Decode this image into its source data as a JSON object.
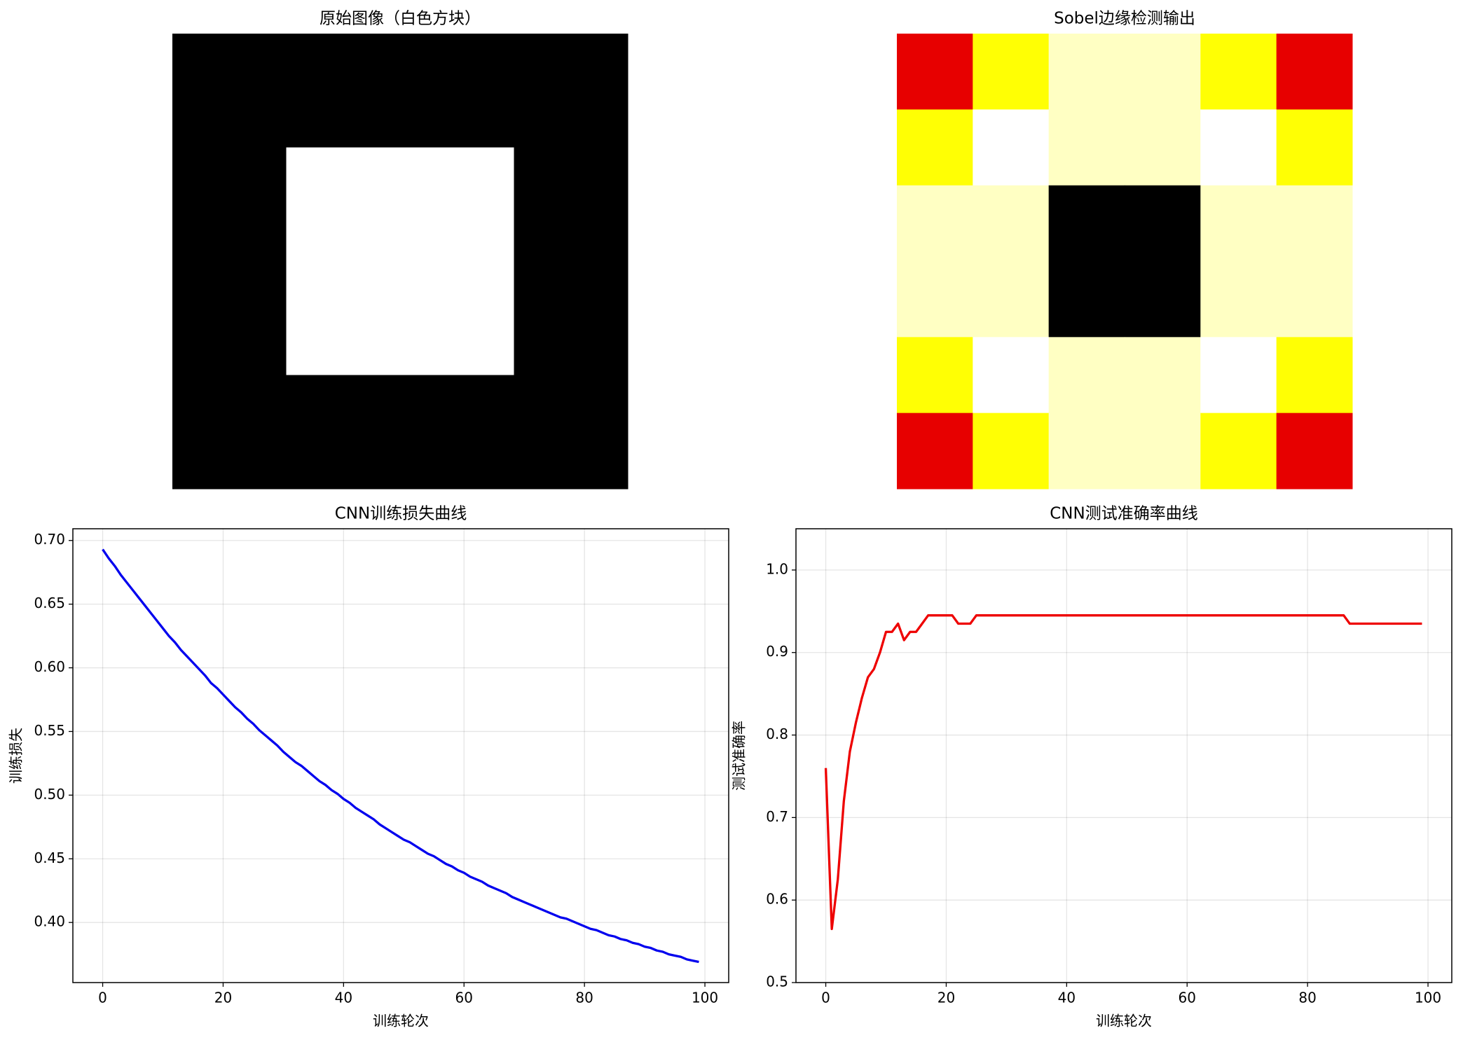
{
  "chart_data": [
    {
      "type": "heatmap",
      "title": "原始图像（白色方块）",
      "colormap": "gray",
      "zlim": [
        0,
        1
      ],
      "values": [
        [
          0,
          0,
          0,
          0
        ],
        [
          0,
          1,
          1,
          0
        ],
        [
          0,
          1,
          1,
          0
        ],
        [
          0,
          0,
          0,
          0
        ]
      ]
    },
    {
      "type": "heatmap",
      "title": "Sobel边缘检测输出",
      "colormap": "hot",
      "zlim": [
        0,
        1
      ],
      "values": [
        [
          0.33,
          0.75,
          0.94,
          0.94,
          0.75,
          0.33
        ],
        [
          0.75,
          1,
          0.94,
          0.94,
          1,
          0.75
        ],
        [
          0.94,
          0.94,
          0,
          0,
          0.94,
          0.94
        ],
        [
          0.94,
          0.94,
          0,
          0,
          0.94,
          0.94
        ],
        [
          0.75,
          1,
          0.94,
          0.94,
          1,
          0.75
        ],
        [
          0.33,
          0.75,
          0.94,
          0.94,
          0.75,
          0.33
        ]
      ]
    },
    {
      "type": "line",
      "title": "CNN训练损失曲线",
      "x_label": "训练轮次",
      "y_label": "训练损失",
      "grid": true,
      "x": [
        0,
        1,
        2,
        3,
        4,
        5,
        6,
        7,
        8,
        9,
        10,
        11,
        12,
        13,
        14,
        15,
        16,
        17,
        18,
        19,
        20,
        21,
        22,
        23,
        24,
        25,
        26,
        27,
        28,
        29,
        30,
        31,
        32,
        33,
        34,
        35,
        36,
        37,
        38,
        39,
        40,
        41,
        42,
        43,
        44,
        45,
        46,
        47,
        48,
        49,
        50,
        51,
        52,
        53,
        54,
        55,
        56,
        57,
        58,
        59,
        60,
        61,
        62,
        63,
        64,
        65,
        66,
        67,
        68,
        69,
        70,
        71,
        72,
        73,
        74,
        75,
        76,
        77,
        78,
        79,
        80,
        81,
        82,
        83,
        84,
        85,
        86,
        87,
        88,
        89,
        90,
        91,
        92,
        93,
        94,
        95,
        96,
        97,
        98,
        99
      ],
      "series": [
        {
          "color": "#0000ee",
          "values": [
            0.693,
            0.686,
            0.68,
            0.673,
            0.667,
            0.661,
            0.655,
            0.649,
            0.643,
            0.637,
            0.631,
            0.625,
            0.62,
            0.614,
            0.609,
            0.604,
            0.599,
            0.594,
            0.588,
            0.584,
            0.579,
            0.574,
            0.569,
            0.565,
            0.56,
            0.556,
            0.551,
            0.547,
            0.543,
            0.539,
            0.534,
            0.53,
            0.526,
            0.523,
            0.519,
            0.515,
            0.511,
            0.508,
            0.504,
            0.501,
            0.497,
            0.494,
            0.49,
            0.487,
            0.484,
            0.481,
            0.477,
            0.474,
            0.471,
            0.468,
            0.465,
            0.463,
            0.46,
            0.457,
            0.454,
            0.452,
            0.449,
            0.446,
            0.444,
            0.441,
            0.439,
            0.436,
            0.434,
            0.432,
            0.429,
            0.427,
            0.425,
            0.423,
            0.42,
            0.418,
            0.416,
            0.414,
            0.412,
            0.41,
            0.408,
            0.406,
            0.404,
            0.403,
            0.401,
            0.399,
            0.397,
            0.395,
            0.394,
            0.392,
            0.39,
            0.389,
            0.387,
            0.386,
            0.384,
            0.383,
            0.381,
            0.38,
            0.378,
            0.377,
            0.375,
            0.374,
            0.373,
            0.371,
            0.37,
            0.369
          ]
        }
      ],
      "xlim": [
        -4.95,
        103.95
      ],
      "xticks": [
        0,
        20,
        40,
        60,
        80,
        100
      ],
      "ylim": [
        0.3528,
        0.7092
      ],
      "yticks": [
        {
          "value": 0.4,
          "label": "0.40"
        },
        {
          "value": 0.45,
          "label": "0.45"
        },
        {
          "value": 0.5,
          "label": "0.50"
        },
        {
          "value": 0.55,
          "label": "0.55"
        },
        {
          "value": 0.6,
          "label": "0.60"
        },
        {
          "value": 0.65,
          "label": "0.65"
        },
        {
          "value": 0.7,
          "label": "0.70"
        }
      ]
    },
    {
      "type": "line",
      "title": "CNN测试准确率曲线",
      "x_label": "训练轮次",
      "y_label": "测试准确率",
      "grid": true,
      "x": [
        0,
        1,
        2,
        3,
        4,
        5,
        6,
        7,
        8,
        9,
        10,
        11,
        12,
        13,
        14,
        15,
        16,
        17,
        18,
        19,
        20,
        21,
        22,
        23,
        24,
        25,
        26,
        27,
        28,
        29,
        30,
        31,
        32,
        33,
        34,
        35,
        36,
        37,
        38,
        39,
        40,
        41,
        42,
        43,
        44,
        45,
        46,
        47,
        48,
        49,
        50,
        51,
        52,
        53,
        54,
        55,
        56,
        57,
        58,
        59,
        60,
        61,
        62,
        63,
        64,
        65,
        66,
        67,
        68,
        69,
        70,
        71,
        72,
        73,
        74,
        75,
        76,
        77,
        78,
        79,
        80,
        81,
        82,
        83,
        84,
        85,
        86,
        87,
        88,
        89,
        90,
        91,
        92,
        93,
        94,
        95,
        96,
        97,
        98,
        99
      ],
      "series": [
        {
          "color": "#ee0000",
          "values": [
            0.76,
            0.565,
            0.625,
            0.72,
            0.78,
            0.815,
            0.845,
            0.87,
            0.88,
            0.9,
            0.925,
            0.925,
            0.935,
            0.915,
            0.925,
            0.925,
            0.935,
            0.945,
            0.945,
            0.945,
            0.945,
            0.945,
            0.935,
            0.935,
            0.935,
            0.945,
            0.945,
            0.945,
            0.945,
            0.945,
            0.945,
            0.945,
            0.945,
            0.945,
            0.945,
            0.945,
            0.945,
            0.945,
            0.945,
            0.945,
            0.945,
            0.945,
            0.945,
            0.945,
            0.945,
            0.945,
            0.945,
            0.945,
            0.945,
            0.945,
            0.945,
            0.945,
            0.945,
            0.945,
            0.945,
            0.945,
            0.945,
            0.945,
            0.945,
            0.945,
            0.945,
            0.945,
            0.945,
            0.945,
            0.945,
            0.945,
            0.945,
            0.945,
            0.945,
            0.945,
            0.945,
            0.945,
            0.945,
            0.945,
            0.945,
            0.945,
            0.945,
            0.945,
            0.945,
            0.945,
            0.945,
            0.945,
            0.945,
            0.945,
            0.945,
            0.945,
            0.945,
            0.935,
            0.935,
            0.935,
            0.935,
            0.935,
            0.935,
            0.935,
            0.935,
            0.935,
            0.935,
            0.935,
            0.935,
            0.935
          ]
        }
      ],
      "xlim": [
        -4.95,
        103.95
      ],
      "xticks": [
        0,
        20,
        40,
        60,
        80,
        100
      ],
      "ylim": [
        0.5,
        1.05
      ],
      "yticks": [
        0.5,
        0.6,
        0.7,
        0.8,
        0.9,
        {
          "value": 1,
          "label": "1.0"
        }
      ]
    }
  ]
}
